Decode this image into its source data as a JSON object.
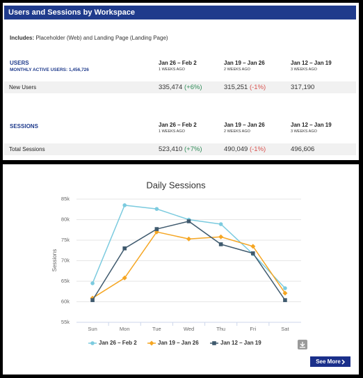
{
  "header": {
    "title": "Users and Sessions by Workspace"
  },
  "includes": {
    "label": "Includes:",
    "text": "Placeholder (Web) and Landing Page (Landing Page)"
  },
  "sections": [
    {
      "title": "USERS",
      "subtitle": "MONTHLY ACTIVE USERS: 1,456,726",
      "columns": [
        {
          "period": "Jan 26 – Feb 2",
          "ago": "1 WEEKS AGO"
        },
        {
          "period": "Jan 19 – Jan 26",
          "ago": "2 WEEKS AGO"
        },
        {
          "period": "Jan 12 – Jan 19",
          "ago": "3 WEEKS AGO"
        }
      ],
      "row": {
        "label": "New Users",
        "cells": [
          {
            "value": "335,474",
            "change": "(+6%)",
            "trend": "up"
          },
          {
            "value": "315,251",
            "change": "(-1%)",
            "trend": "down"
          },
          {
            "value": "317,190"
          }
        ]
      }
    },
    {
      "title": "SESSIONS",
      "columns": [
        {
          "period": "Jan 26 – Feb 2",
          "ago": "1 WEEKS AGO"
        },
        {
          "period": "Jan 19 – Jan 26",
          "ago": "2 WEEKS AGO"
        },
        {
          "period": "Jan 12 – Jan 19",
          "ago": "3 WEEKS AGO"
        }
      ],
      "row": {
        "label": "Total Sessions",
        "cells": [
          {
            "value": "523,410",
            "change": "(+7%)",
            "trend": "up"
          },
          {
            "value": "490,049",
            "change": "(-1%)",
            "trend": "down"
          },
          {
            "value": "496,606"
          }
        ]
      }
    }
  ],
  "chart_data": {
    "type": "line",
    "title": "Daily Sessions",
    "y_label": "Sessions",
    "categories": [
      "Sun",
      "Mon",
      "Tue",
      "Wed",
      "Thu",
      "Fri",
      "Sat"
    ],
    "series": [
      {
        "name": "Jan 26 – Feb 2",
        "color": "#7ccbdf",
        "marker": "circle",
        "values": [
          64500,
          83500,
          82600,
          80000,
          78900,
          71600,
          63300
        ]
      },
      {
        "name": "Jan 19 – Jan 26",
        "color": "#f5a623",
        "marker": "diamond",
        "values": [
          60900,
          65800,
          77000,
          75300,
          75800,
          73500,
          62100
        ]
      },
      {
        "name": "Jan 12 – Jan 19",
        "color": "#3f5a6e",
        "marker": "square",
        "values": [
          60400,
          73000,
          77700,
          79600,
          74000,
          71800,
          60400
        ]
      }
    ],
    "ylim": [
      55000,
      85000
    ],
    "yticks": [
      {
        "value": 55000,
        "label": "55k"
      },
      {
        "value": 60000,
        "label": "60k"
      },
      {
        "value": 65000,
        "label": "65k"
      },
      {
        "value": 70000,
        "label": "70k"
      },
      {
        "value": 75000,
        "label": "75k"
      },
      {
        "value": 80000,
        "label": "80k"
      },
      {
        "value": 85000,
        "label": "85k"
      }
    ],
    "grid": true,
    "legend": "bottom"
  },
  "see_more": "See More"
}
